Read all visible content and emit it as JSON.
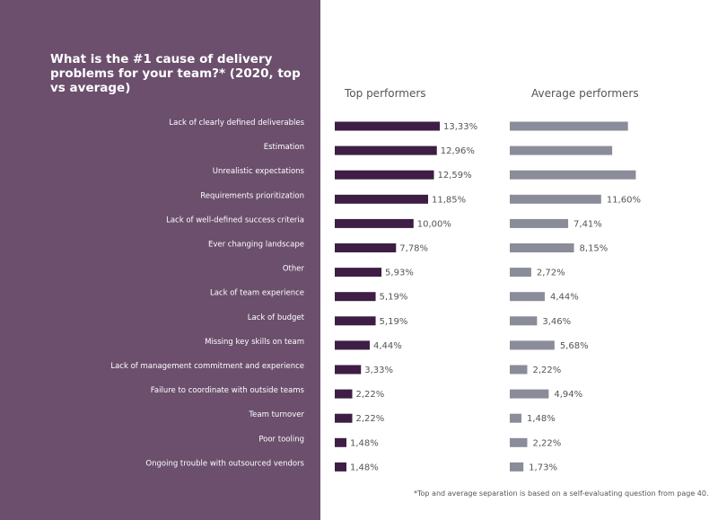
{
  "colors": {
    "panel": "#6b4f6d",
    "top_bar": "#3e1e44",
    "avg_bar": "#8a8c99"
  },
  "chart_data": {
    "type": "bar",
    "orientation": "horizontal",
    "title": "What is the #1 cause of delivery problems for your team?* (2020, top vs average)",
    "categories": [
      "Lack of clearly defined deliverables",
      "Estimation",
      "Unrealistic expectations",
      "Requirements prioritization",
      "Lack of well-defined success criteria",
      "Ever changing landscape",
      "Other",
      "Lack of team experience",
      "Lack of budget",
      "Missing key skills on team",
      "Lack of management commitment and experience",
      "Failure to coordinate with outside teams",
      "Team turnover",
      "Poor tooling",
      "Ongoing trouble with outsourced vendors"
    ],
    "series": [
      {
        "name": "Top performers",
        "values": [
          13.33,
          12.96,
          12.59,
          11.85,
          10.0,
          7.78,
          5.93,
          5.19,
          5.19,
          4.44,
          3.33,
          2.22,
          2.22,
          1.48,
          1.48
        ],
        "labels": [
          "13,33%",
          "12,96%",
          "12,59%",
          "11,85%",
          "10,00%",
          "7,78%",
          "5,93%",
          "5,19%",
          "5,19%",
          "4,44%",
          "3,33%",
          "2,22%",
          "2,22%",
          "1,48%",
          "1,48%"
        ]
      },
      {
        "name": "Average performers",
        "values": [
          15.0,
          13.0,
          16.0,
          11.6,
          7.41,
          8.15,
          2.72,
          4.44,
          3.46,
          5.68,
          2.22,
          4.94,
          1.48,
          2.22,
          1.73
        ],
        "labels": [
          "",
          "",
          "",
          "11,60%",
          "7,41%",
          "8,15%",
          "2,72%",
          "4,44%",
          "3,46%",
          "5,68%",
          "2,22%",
          "4,94%",
          "1,48%",
          "2,22%",
          "1,73%"
        ]
      }
    ],
    "xlim": [
      0,
      16
    ],
    "legend": "column headers at top"
  },
  "footnote": "*Top and average separation is based on a self-evaluating question from page 40."
}
